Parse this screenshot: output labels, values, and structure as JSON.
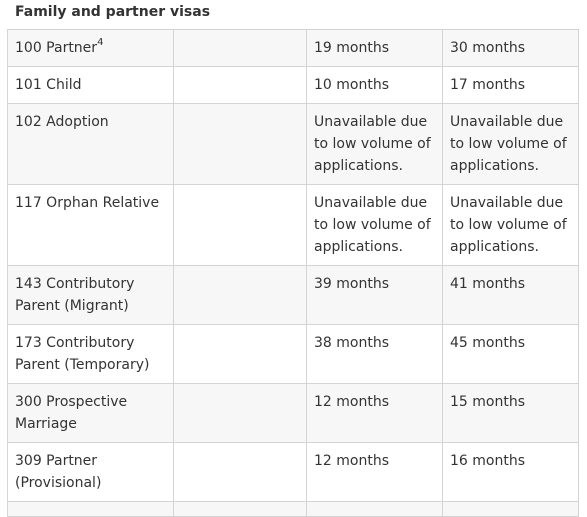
{
  "section_title": "Family and partner visas",
  "rows": [
    {
      "visa": "100 Partner",
      "sup": "4",
      "col2": "",
      "p75": "19 months",
      "p90": "30 months"
    },
    {
      "visa": "101 Child",
      "sup": "",
      "col2": "",
      "p75": "10 months",
      "p90": "17 months"
    },
    {
      "visa": "102 Adoption",
      "sup": "",
      "col2": "",
      "p75": "Unavailable due to low volume of applications.",
      "p90": "Unavailable due to low volume of applications."
    },
    {
      "visa": "117 Orphan Relative",
      "sup": "",
      "col2": "",
      "p75": "Unavailable due to low volume of applications.",
      "p90": "Unavailable due to low volume of applications."
    },
    {
      "visa": "143 Contributory Parent (Migrant)",
      "sup": "",
      "col2": "",
      "p75": "39 months",
      "p90": "41 months"
    },
    {
      "visa": "173 Contributory Parent (Temporary)",
      "sup": "",
      "col2": "",
      "p75": "38 months",
      "p90": "45 months"
    },
    {
      "visa": "300 Prospective Marriage",
      "sup": "",
      "col2": "",
      "p75": "12 months",
      "p90": "15 months"
    },
    {
      "visa": "309 Partner (Provisional)",
      "sup": "",
      "col2": "",
      "p75": "12 months",
      "p90": "16 months"
    },
    {
      "visa": "",
      "sup": "",
      "col2": "",
      "p75": "",
      "p90": ""
    }
  ]
}
